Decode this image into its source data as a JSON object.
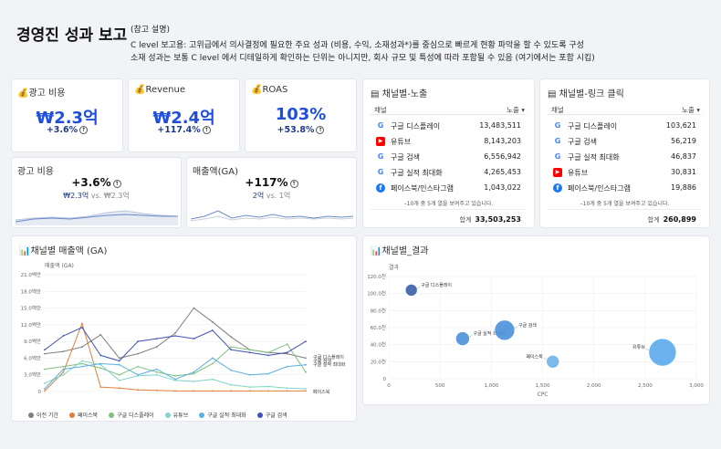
{
  "header": {
    "title": "경영진 성과 보고",
    "note_label": "(참고 설명)",
    "note_line1": "C level 보고용: 고위급에서 의사결정에 필요한 주요 성과 (비용, 수익, 소재성과*)를 중심으로 빠르게 현황 파악을 할 수 있도록 구성",
    "note_line2": "소재 성과는 보통 C level 에서 디테일하게 확인하는 단위는 아니지만, 회사 규모 및 특성에 따라 포함될 수 있음 (여기에서는 포함 시킴)"
  },
  "kpis": [
    {
      "label": "광고 비용",
      "value": "₩2.3억",
      "delta": "+3.6%"
    },
    {
      "label": "Revenue",
      "value": "₩2.4억",
      "delta": "+117.4%"
    },
    {
      "label": "ROAS",
      "value": "103%",
      "delta": "+53.8%"
    }
  ],
  "sparks": [
    {
      "label": "광고 비용",
      "value": "+3.6%",
      "current": "₩2.3억",
      "vs": "vs.",
      "previous": "₩2.3억"
    },
    {
      "label": "매출액(GA)",
      "value": "+117%",
      "current": "2억",
      "vs": "vs.",
      "previous": "1억"
    }
  ],
  "impressions_table": {
    "title": "채널별-노출",
    "col_channel": "채널",
    "col_metric": "노출 ▾",
    "rows": [
      {
        "icon": "google",
        "name": "구글 디스플레이",
        "value": "13,483,511"
      },
      {
        "icon": "youtube",
        "name": "유튜브",
        "value": "8,143,203"
      },
      {
        "icon": "google",
        "name": "구글 검색",
        "value": "6,556,942"
      },
      {
        "icon": "google",
        "name": "구글 실적 최대화",
        "value": "4,265,453"
      },
      {
        "icon": "meta",
        "name": "페이스북/인스타그램",
        "value": "1,043,022"
      }
    ],
    "more_text": "–10개 중 5개 열을 보여주고 있습니다.",
    "total_label": "합계",
    "total_value": "33,503,253"
  },
  "clicks_table": {
    "title": "채널별-링크 클릭",
    "col_channel": "채널",
    "col_metric": "노출 ▾",
    "rows": [
      {
        "icon": "google",
        "name": "구글 디스플레이",
        "value": "103,621"
      },
      {
        "icon": "google",
        "name": "구글 검색",
        "value": "56,219"
      },
      {
        "icon": "google",
        "name": "구글 실적 최대화",
        "value": "46,837"
      },
      {
        "icon": "youtube",
        "name": "유튜브",
        "value": "30,831"
      },
      {
        "icon": "meta",
        "name": "페이스북/인스타그램",
        "value": "19,886"
      }
    ],
    "more_text": "–10개 중 5개 열을 보여주고 있습니다.",
    "total_label": "합계",
    "total_value": "260,899"
  },
  "colors": {
    "accent": "#1e4fd6",
    "google": "#4285f4",
    "youtube": "#ff0000",
    "meta": "#1877f2"
  },
  "chart_data": [
    {
      "type": "line",
      "title": "채널별 매출액 (GA)",
      "ylabel": "매출액 (GA)",
      "ylim": [
        0,
        21000000
      ],
      "y_ticks": [
        "0",
        "3.0백만",
        "6.0백만",
        "9.0백만",
        "12.0백만",
        "15.0백만",
        "18.0백만",
        "21.0백만"
      ],
      "x": [
        0,
        1,
        2,
        3,
        4,
        5,
        6,
        7,
        8,
        9,
        10,
        11,
        12,
        13,
        14
      ],
      "series": [
        {
          "name": "이전 기간",
          "color": "#7f7f7f",
          "values": [
            6.8,
            7.2,
            8.0,
            10.2,
            6.0,
            6.8,
            8.0,
            10.5,
            15.0,
            12.5,
            9.8,
            7.5,
            7.0,
            6.8,
            6.0
          ]
        },
        {
          "name": "페이스북",
          "color": "#e0803a",
          "values": [
            0.1,
            3.5,
            12.2,
            0.8,
            0.6,
            0.3,
            0.2,
            0.1,
            0.1,
            0.1,
            0.1,
            0.1,
            0.1,
            0.1,
            0.1
          ]
        },
        {
          "name": "구글 디스플레이",
          "color": "#7fbf7f",
          "values": [
            4.0,
            4.5,
            5.0,
            4.2,
            3.0,
            4.5,
            3.5,
            2.8,
            3.2,
            5.0,
            8.0,
            7.5,
            7.0,
            8.5,
            3.5
          ]
        },
        {
          "name": "유튜브",
          "color": "#80d4c8",
          "values": [
            1.5,
            3.0,
            5.5,
            4.8,
            2.0,
            2.8,
            3.0,
            2.0,
            1.8,
            2.2,
            1.2,
            0.8,
            0.9,
            0.6,
            0.5
          ]
        },
        {
          "name": "구글 실적 최대화",
          "color": "#5ab0e0",
          "values": [
            0.5,
            4.0,
            4.5,
            5.0,
            4.8,
            3.0,
            4.0,
            2.2,
            3.5,
            6.0,
            3.8,
            3.0,
            3.2,
            4.5,
            4.8
          ]
        },
        {
          "name": "구글 검색",
          "color": "#3f51b5",
          "values": [
            7.5,
            10.0,
            11.5,
            6.5,
            5.5,
            9.0,
            9.5,
            10.0,
            9.5,
            11.0,
            7.5,
            7.0,
            6.5,
            7.0,
            9.0
          ]
        }
      ],
      "end_labels": [
        "구글 디스플레이",
        "구글 검색",
        "구글 실적 최대화",
        "페이스북"
      ]
    },
    {
      "type": "scatter",
      "title": "채널별_결과",
      "xlabel": "CPC",
      "ylabel": "결과",
      "xlim": [
        0,
        3000
      ],
      "ylim": [
        0,
        120
      ],
      "x_ticks": [
        "0",
        "500",
        "1,000",
        "1,500",
        "2,000",
        "2,500",
        "3,000"
      ],
      "y_ticks": [
        "0",
        "20.0천",
        "40.0천",
        "60.0천",
        "80.0천",
        "100.0천",
        "120.0천"
      ],
      "points": [
        {
          "name": "구글 디스플레이",
          "x": 220,
          "y": 104,
          "r": 6.5,
          "color": "#3a5fa8"
        },
        {
          "name": "구글 실적 최대화",
          "x": 720,
          "y": 47,
          "r": 7.5,
          "color": "#4a90d9"
        },
        {
          "name": "구글 검색",
          "x": 1130,
          "y": 57,
          "r": 11,
          "color": "#4a90d9"
        },
        {
          "name": "페이스북",
          "x": 1600,
          "y": 20,
          "r": 7,
          "color": "#6fb2ea"
        },
        {
          "name": "유튜브",
          "x": 2670,
          "y": 31,
          "r": 15,
          "color": "#5aa8ec"
        }
      ]
    }
  ]
}
